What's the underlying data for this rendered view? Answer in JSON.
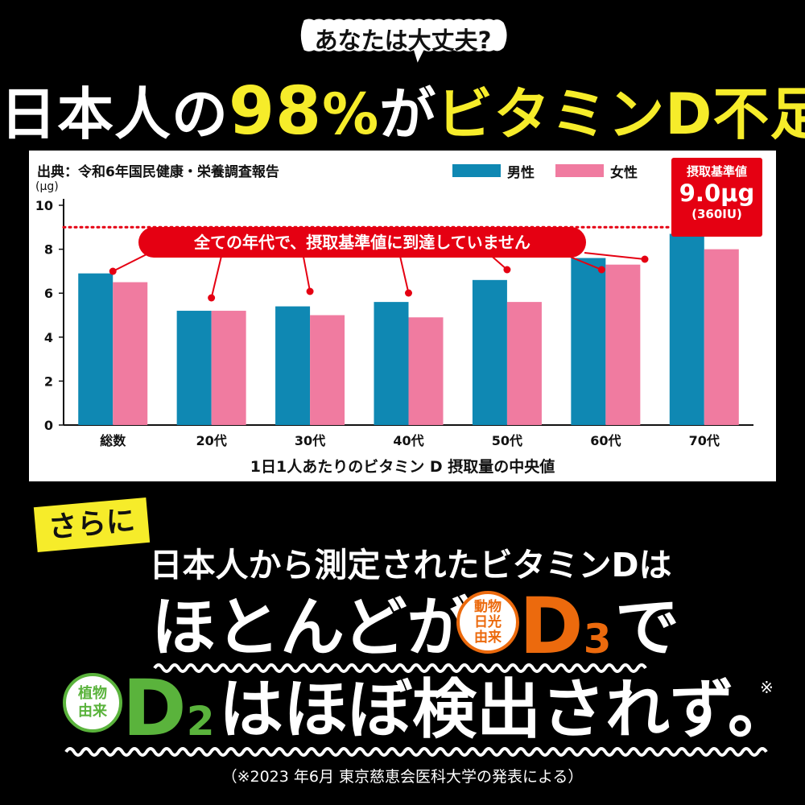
{
  "bubble": "あなたは大丈夫?",
  "headline": {
    "part1": "日本人の",
    "percent": "98",
    "percent_sign": "%",
    "part2": "が",
    "part3": "ビタミンD不足"
  },
  "chart_data": {
    "type": "bar",
    "source": "出典：令和6年国民健康・栄養調査報告",
    "ylabel": "(μg)",
    "xlabel": "1日1人あたりのビタミン D 摂取量の中央値",
    "categories": [
      "総数",
      "20代",
      "30代",
      "40代",
      "50代",
      "60代",
      "70代"
    ],
    "ylim": [
      0,
      10
    ],
    "yticks": [
      0,
      2,
      4,
      6,
      8,
      10
    ],
    "series": [
      {
        "name": "男性",
        "color": "#0f88b3",
        "values": [
          6.9,
          5.2,
          5.4,
          5.6,
          6.6,
          7.6,
          8.7
        ]
      },
      {
        "name": "女性",
        "color": "#f07ba0",
        "values": [
          6.5,
          5.2,
          5.0,
          4.9,
          5.6,
          7.3,
          8.0
        ]
      }
    ],
    "reference": {
      "value": 9.0,
      "label_title": "摂取基準値",
      "label_value": "9.0μg",
      "label_sub": "(360IU)"
    },
    "callout": "全ての年代で、摂取基準値に到達していません"
  },
  "lower": {
    "badge": "さらに",
    "line1": "日本人から測定されたビタミンDは",
    "line2a": "ほとんどが",
    "d3_circle": [
      "動物",
      "日光",
      "由来"
    ],
    "d3_d": "D",
    "d3_num": "3",
    "line2b": "で",
    "d2_circle": [
      "植物",
      "由来"
    ],
    "d2_d": "D",
    "d2_num": "2",
    "line3": "はほぼ検出されず。",
    "note_mark": "※",
    "footnote": "（※2023 年6月 東京慈恵会医科大学の発表による）"
  },
  "colors": {
    "yellow": "#f6ec2a",
    "red": "#e50012",
    "orange": "#ec6a0d",
    "green": "#5ab33c"
  }
}
